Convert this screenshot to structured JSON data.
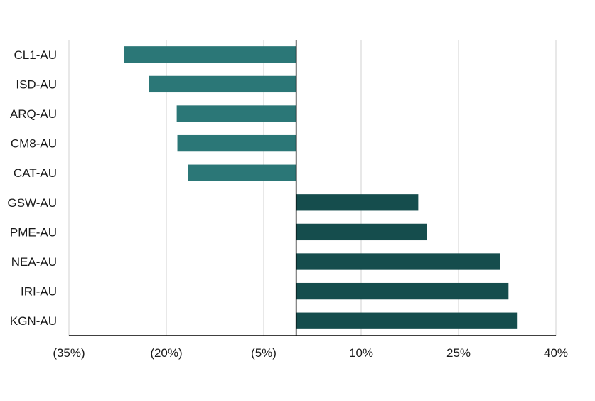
{
  "chart_data": {
    "type": "bar",
    "orientation": "horizontal",
    "title": "",
    "xlabel": "",
    "ylabel": "",
    "categories": [
      "CL1-AU",
      "ISD-AU",
      "ARQ-AU",
      "CM8-AU",
      "CAT-AU",
      "GSW-AU",
      "PME-AU",
      "NEA-AU",
      "IRI-AU",
      "KGN-AU"
    ],
    "values": [
      -26.5,
      -22.7,
      -18.4,
      -18.3,
      -16.7,
      18.8,
      20.1,
      31.4,
      32.7,
      34.0
    ],
    "xlim": [
      -35,
      40
    ],
    "xticks": [
      -35,
      -20,
      -5,
      10,
      25,
      40
    ],
    "xtick_labels": [
      "(35%)",
      "(20%)",
      "(5%)",
      "10%",
      "25%",
      "40%"
    ],
    "grid": "vertical",
    "legend": "none",
    "colors": {
      "negative": "#2b7777",
      "positive": "#154d4d",
      "gridline": "#d9d9d9",
      "axis": "#000000"
    }
  }
}
